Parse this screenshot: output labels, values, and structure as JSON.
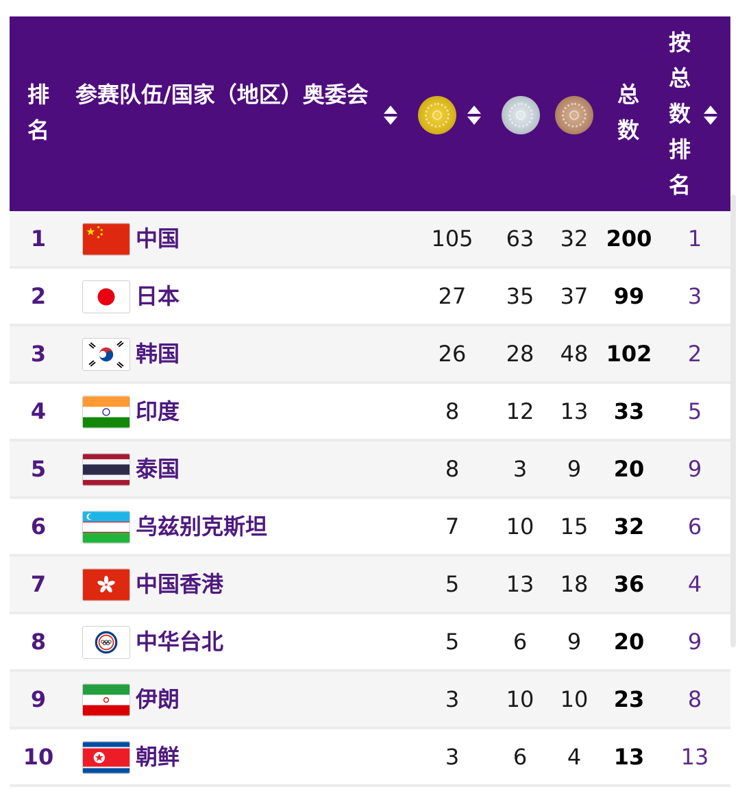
{
  "header": {
    "rank": "排名",
    "team": "参赛队伍/国家（地区）奥委会",
    "total": "总数",
    "by_total_rank": "按总数排名"
  },
  "medal_icons": [
    "gold-medal-icon",
    "silver-medal-icon",
    "bronze-medal-icon"
  ],
  "colors": {
    "header_bg": "#4e0d7d",
    "rank_text": "#4e1a7f"
  },
  "rows": [
    {
      "rank": "1",
      "flag": "china-flag-icon",
      "name": "中国",
      "gold": "105",
      "silver": "63",
      "bronze": "32",
      "total": "200",
      "by_total": "1"
    },
    {
      "rank": "2",
      "flag": "japan-flag-icon",
      "name": "日本",
      "gold": "27",
      "silver": "35",
      "bronze": "37",
      "total": "99",
      "by_total": "3"
    },
    {
      "rank": "3",
      "flag": "korea-flag-icon",
      "name": "韩国",
      "gold": "26",
      "silver": "28",
      "bronze": "48",
      "total": "102",
      "by_total": "2"
    },
    {
      "rank": "4",
      "flag": "india-flag-icon",
      "name": "印度",
      "gold": "8",
      "silver": "12",
      "bronze": "13",
      "total": "33",
      "by_total": "5"
    },
    {
      "rank": "5",
      "flag": "thailand-flag-icon",
      "name": "泰国",
      "gold": "8",
      "silver": "3",
      "bronze": "9",
      "total": "20",
      "by_total": "9"
    },
    {
      "rank": "6",
      "flag": "uzbekistan-flag-icon",
      "name": "乌兹别克斯坦",
      "gold": "7",
      "silver": "10",
      "bronze": "15",
      "total": "32",
      "by_total": "6"
    },
    {
      "rank": "7",
      "flag": "hong-kong-flag-icon",
      "name": "中国香港",
      "gold": "5",
      "silver": "13",
      "bronze": "18",
      "total": "36",
      "by_total": "4"
    },
    {
      "rank": "8",
      "flag": "chinese-taipei-flag-icon",
      "name": "中华台北",
      "gold": "5",
      "silver": "6",
      "bronze": "9",
      "total": "20",
      "by_total": "9"
    },
    {
      "rank": "9",
      "flag": "iran-flag-icon",
      "name": "伊朗",
      "gold": "3",
      "silver": "10",
      "bronze": "10",
      "total": "23",
      "by_total": "8"
    },
    {
      "rank": "10",
      "flag": "north-korea-flag-icon",
      "name": "朝鲜",
      "gold": "3",
      "silver": "6",
      "bronze": "4",
      "total": "13",
      "by_total": "13"
    }
  ]
}
